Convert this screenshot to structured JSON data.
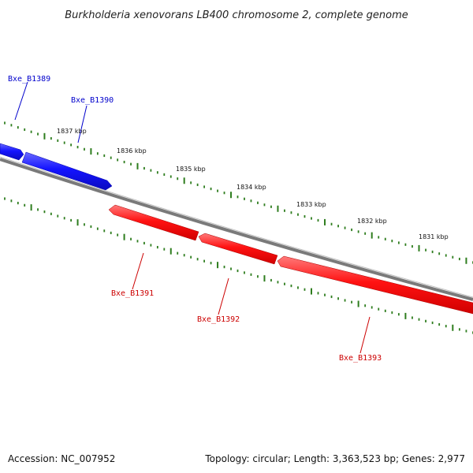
{
  "title": "Burkholderia xenovorans LB400 chromosome 2, complete genome",
  "footer": {
    "accession": "Accession: NC_007952",
    "summary": "Topology: circular; Length: 3,363,523 bp; Genes: 2,977"
  },
  "scale": {
    "labels": [
      "1837 kbp",
      "1836 kbp",
      "1835 kbp",
      "1834 kbp",
      "1833 kbp",
      "1832 kbp",
      "1831 kbp"
    ]
  },
  "genes": [
    {
      "name": "Bxe_B1389",
      "strand": "forward",
      "color": "#0000cc"
    },
    {
      "name": "Bxe_B1390",
      "strand": "forward",
      "color": "#0000cc"
    },
    {
      "name": "Bxe_B1391",
      "strand": "reverse",
      "color": "#cc0000"
    },
    {
      "name": "Bxe_B1392",
      "strand": "reverse",
      "color": "#cc0000"
    },
    {
      "name": "Bxe_B1393",
      "strand": "reverse",
      "color": "#cc0000"
    }
  ],
  "colors": {
    "forward_gene": "#1a1aff",
    "reverse_gene": "#ff1a1a",
    "backbone": "#777777",
    "tick": "#2e7d1e"
  }
}
